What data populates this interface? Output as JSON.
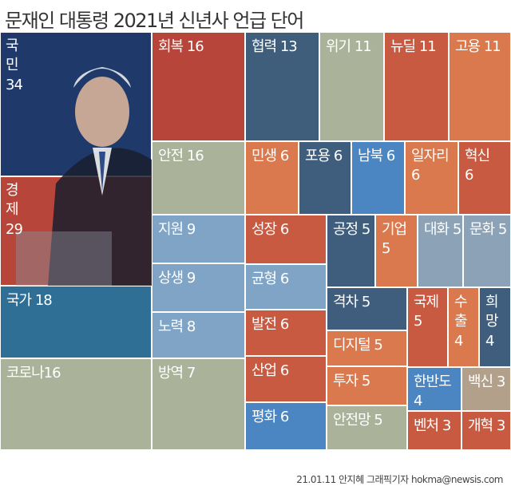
{
  "title": "문재인 대통령 2021년 신년사 언급 단어",
  "credit": "21.01.11 안지혜 그래픽기자  hokma@newsis.com",
  "colors": {
    "dark_navy": "#1f3a6a",
    "red": "#b7453a",
    "rust": "#c75a41",
    "slate": "#3e5e7c",
    "khaki": "#aab29a",
    "orange": "#d9794d",
    "steel": "#3f5e7d",
    "blue": "#4b86c2",
    "light_blue": "#7fa4c6",
    "teal": "#2f6f95",
    "grey_blue": "#8ba2b7",
    "tan": "#b3a08a"
  },
  "chart_data": {
    "type": "treemap",
    "title": "문재인 대통령 2021년 신년사 언급 단어",
    "items": [
      {
        "label": "국민 34",
        "word": "국민",
        "value": 34,
        "color": "#1f3a6a"
      },
      {
        "label": "경제 29",
        "word": "경제",
        "value": 29,
        "color": "#b7453a"
      },
      {
        "label": "국가 18",
        "word": "국가",
        "value": 18,
        "color": "#2f6f95"
      },
      {
        "label": "코로나16",
        "word": "코로나",
        "value": 16,
        "color": "#aab29a"
      },
      {
        "label": "회복 16",
        "word": "회복",
        "value": 16,
        "color": "#b7453a"
      },
      {
        "label": "안전 16",
        "word": "안전",
        "value": 16,
        "color": "#aab29a"
      },
      {
        "label": "협력 13",
        "word": "협력",
        "value": 13,
        "color": "#3e5e7c"
      },
      {
        "label": "위기 11",
        "word": "위기",
        "value": 11,
        "color": "#aab29a"
      },
      {
        "label": "뉴딜 11",
        "word": "뉴딜",
        "value": 11,
        "color": "#c75a41"
      },
      {
        "label": "고용 11",
        "word": "고용",
        "value": 11,
        "color": "#d9794d"
      },
      {
        "label": "민생 6",
        "word": "민생",
        "value": 6,
        "color": "#d9794d"
      },
      {
        "label": "포용 6",
        "word": "포용",
        "value": 6,
        "color": "#3f5e7d"
      },
      {
        "label": "남북 6",
        "word": "남북",
        "value": 6,
        "color": "#4b86c2"
      },
      {
        "label": "일자리\n6",
        "word": "일자리",
        "value": 6,
        "color": "#d9794d"
      },
      {
        "label": "혁신\n6",
        "word": "혁신",
        "value": 6,
        "color": "#c75a41"
      },
      {
        "label": "지원 9",
        "word": "지원",
        "value": 9,
        "color": "#7fa4c6"
      },
      {
        "label": "상생 9",
        "word": "상생",
        "value": 9,
        "color": "#7fa4c6"
      },
      {
        "label": "노력 8",
        "word": "노력",
        "value": 8,
        "color": "#7fa4c6"
      },
      {
        "label": "방역 7",
        "word": "방역",
        "value": 7,
        "color": "#aab29a"
      },
      {
        "label": "성장 6",
        "word": "성장",
        "value": 6,
        "color": "#c75a41"
      },
      {
        "label": "균형 6",
        "word": "균형",
        "value": 6,
        "color": "#7fa4c6"
      },
      {
        "label": "발전 6",
        "word": "발전",
        "value": 6,
        "color": "#c75a41"
      },
      {
        "label": "산업 6",
        "word": "산업",
        "value": 6,
        "color": "#c75a41"
      },
      {
        "label": "평화 6",
        "word": "평화",
        "value": 6,
        "color": "#4b86c2"
      },
      {
        "label": "공정 5",
        "word": "공정",
        "value": 5,
        "color": "#3f5e7d"
      },
      {
        "label": "기업 5",
        "word": "기업",
        "value": 5,
        "color": "#d9794d"
      },
      {
        "label": "대화 5",
        "word": "대화",
        "value": 5,
        "color": "#8ba2b7"
      },
      {
        "label": "문화 5",
        "word": "문화",
        "value": 5,
        "color": "#8ba2b7"
      },
      {
        "label": "격차 5",
        "word": "격차",
        "value": 5,
        "color": "#3f5e7d"
      },
      {
        "label": "디지털 5",
        "word": "디지털",
        "value": 5,
        "color": "#d9794d"
      },
      {
        "label": "투자 5",
        "word": "투자",
        "value": 5,
        "color": "#d9794d"
      },
      {
        "label": "안전망 5",
        "word": "안전망",
        "value": 5,
        "color": "#aab29a"
      },
      {
        "label": "국제 5",
        "word": "국제",
        "value": 5,
        "color": "#c75a41"
      },
      {
        "label": "수출\n4",
        "word": "수출",
        "value": 4,
        "color": "#d9794d"
      },
      {
        "label": "희망\n4",
        "word": "희망",
        "value": 4,
        "color": "#3f5e7d"
      },
      {
        "label": "한반도 4",
        "word": "한반도",
        "value": 4,
        "color": "#4b86c2"
      },
      {
        "label": "백신 3",
        "word": "백신",
        "value": 3,
        "color": "#b3a08a"
      },
      {
        "label": "벤처 3",
        "word": "벤처",
        "value": 3,
        "color": "#c75a41"
      },
      {
        "label": "개혁 3",
        "word": "개혁",
        "value": 3,
        "color": "#c75a41"
      }
    ]
  }
}
